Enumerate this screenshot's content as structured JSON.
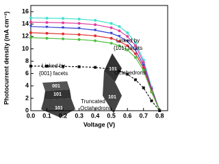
{
  "chart_data": {
    "type": "line",
    "x_label": "Voltage (V)",
    "y_label": "Photocurrent density (mA cm⁻²)",
    "x": [
      0,
      0.1,
      0.2,
      0.3,
      0.4,
      0.5,
      0.55,
      0.6,
      0.65,
      0.7,
      0.75,
      0.8
    ],
    "series": [
      {
        "color": "#40e0d0",
        "marker": "circle",
        "dash": false,
        "values": [
          15.0,
          14.95,
          14.9,
          14.8,
          14.6,
          14.1,
          13.6,
          12.6,
          11.0,
          8.2,
          3.8,
          0
        ]
      },
      {
        "color": "#e040a0",
        "marker": "circle",
        "dash": false,
        "values": [
          14.3,
          14.25,
          14.2,
          14.1,
          13.9,
          13.4,
          12.9,
          12.0,
          10.5,
          7.8,
          3.6,
          0
        ]
      },
      {
        "color": "#3040d0",
        "marker": "triangle",
        "dash": false,
        "values": [
          13.6,
          13.5,
          13.4,
          13.3,
          13.0,
          12.5,
          12.0,
          11.2,
          9.8,
          7.3,
          3.4,
          0
        ]
      },
      {
        "color": "#e03030",
        "marker": "circle",
        "dash": false,
        "values": [
          12.6,
          12.5,
          12.4,
          12.3,
          12.1,
          11.7,
          11.2,
          10.5,
          9.2,
          6.9,
          3.2,
          0
        ]
      },
      {
        "color": "#50c040",
        "marker": "circle",
        "dash": false,
        "values": [
          11.8,
          11.7,
          11.6,
          11.5,
          11.3,
          10.9,
          10.5,
          9.8,
          8.6,
          6.5,
          3.0,
          0
        ]
      },
      {
        "color": "#111111",
        "marker": "square",
        "dash": true,
        "values": [
          7.2,
          7.2,
          7.15,
          7.1,
          7.0,
          6.7,
          6.4,
          5.9,
          5.0,
          3.7,
          1.6,
          0
        ]
      }
    ],
    "xlim": [
      0,
      0.85
    ],
    "ylim": [
      0,
      17
    ],
    "xticks": [
      {
        "value": 0,
        "label": "0.0"
      },
      0.1,
      0.2,
      0.3,
      0.4,
      0.5,
      0.6,
      0.7,
      0.8
    ],
    "yticks": [
      0,
      2,
      4,
      6,
      8,
      10,
      12,
      14,
      16
    ],
    "annotations": [
      "Linked by",
      "{001} facets",
      "Linked by",
      "{101} facets",
      "Octahedrons",
      "Truncated",
      "Octahedrons",
      "001",
      "101",
      "101",
      "101",
      "101"
    ]
  }
}
